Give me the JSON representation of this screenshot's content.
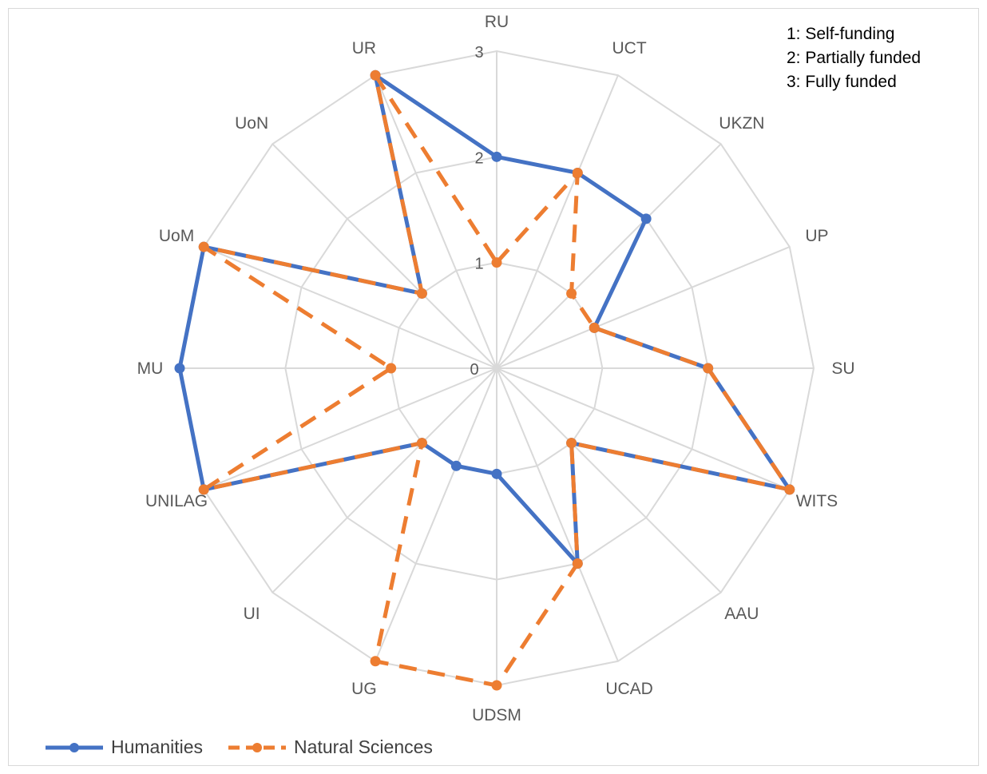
{
  "chart_data": {
    "type": "radar",
    "categories": [
      "RU",
      "UCT",
      "UKZN",
      "UP",
      "SU",
      "WITS",
      "AAU",
      "UCAD",
      "UDSM",
      "UG",
      "UI",
      "UNILAG",
      "MU",
      "UoM",
      "UoN",
      "UR"
    ],
    "series": [
      {
        "name": "Humanities",
        "color": "#4472c4",
        "style": "solid",
        "values": [
          2,
          2,
          2,
          1,
          2,
          3,
          1,
          2,
          1,
          1,
          1,
          3,
          3,
          3,
          1,
          3
        ]
      },
      {
        "name": "Natural Sciences",
        "color": "#ed7d31",
        "style": "dashed",
        "values": [
          1,
          2,
          1,
          1,
          2,
          3,
          1,
          2,
          3,
          3,
          1,
          3,
          1,
          3,
          1,
          3
        ]
      }
    ],
    "radial_ticks": [
      "0",
      "1",
      "2",
      "3"
    ],
    "rmax": 3,
    "grid": true,
    "legend_position": "bottom-left",
    "notes": [
      "1: Self-funding",
      "2: Partially funded",
      "3: Fully funded"
    ]
  }
}
